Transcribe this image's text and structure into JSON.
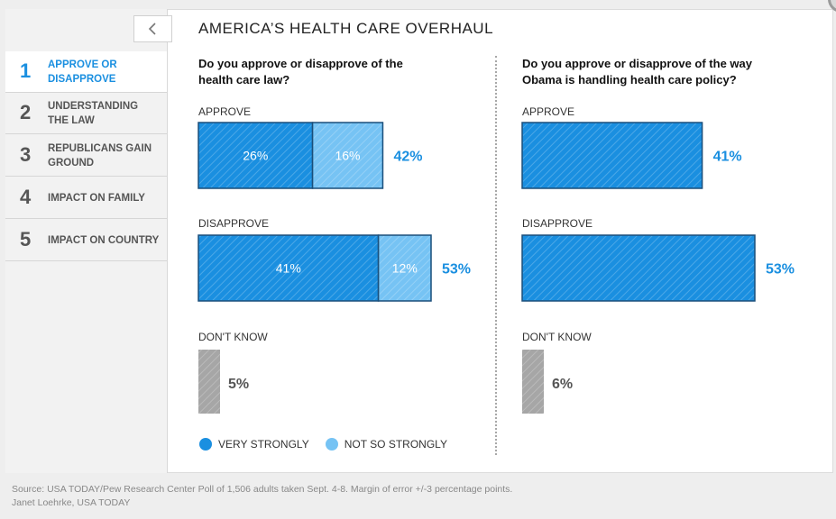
{
  "page": {
    "title": "AMERICA’S HEALTH CARE OVERHAUL"
  },
  "sidebar": {
    "items": [
      {
        "number": "1",
        "label": "APPROVE OR DISAPPROVE",
        "active": true
      },
      {
        "number": "2",
        "label": "UNDERSTANDING THE LAW",
        "active": false
      },
      {
        "number": "3",
        "label": "REPUBLICANS GAIN GROUND",
        "active": false
      },
      {
        "number": "4",
        "label": "IMPACT ON FAMILY",
        "active": false
      },
      {
        "number": "5",
        "label": "IMPACT ON COUNTRY",
        "active": false
      }
    ]
  },
  "icons": {
    "back": "chevron-left-icon",
    "corner": "dial-icon"
  },
  "colors": {
    "very_strongly": "#1a8fe0",
    "not_so_strongly": "#76c3f4",
    "dont_know": "#a6a6a6",
    "total_text": "#1a8fe0"
  },
  "legend": {
    "very_strongly": "VERY STRONGLY",
    "not_so_strongly": "NOT SO STRONGLY"
  },
  "footer": {
    "source": "Source: USA TODAY/Pew Research Center Poll of 1,506 adults taken Sept. 4-8. Margin of error +/-3 percentage points.",
    "credit": "Janet Loehrke, USA TODAY"
  },
  "chart_data": [
    {
      "type": "bar",
      "stacked": true,
      "title": "Do you approve or disapprove of the health care law?",
      "categories": [
        "APPROVE",
        "DISAPPROVE",
        "DON'T KNOW"
      ],
      "series": [
        {
          "name": "VERY STRONGLY",
          "values": [
            26,
            41,
            null
          ],
          "labels": [
            "26%",
            "41%",
            ""
          ]
        },
        {
          "name": "NOT SO STRONGLY",
          "values": [
            16,
            12,
            null
          ],
          "labels": [
            "16%",
            "12%",
            ""
          ]
        },
        {
          "name": "",
          "values": [
            null,
            null,
            5
          ],
          "labels": [
            "",
            "",
            ""
          ]
        }
      ],
      "totals": [
        "42%",
        "53%",
        "5%"
      ],
      "total_values": [
        42,
        53,
        5
      ]
    },
    {
      "type": "bar",
      "stacked": false,
      "title": "Do you approve or disapprove of the way Obama is handling health care policy?",
      "categories": [
        "APPROVE",
        "DISAPPROVE",
        "DON'T KNOW"
      ],
      "series": [
        {
          "name": "",
          "values": [
            41,
            53,
            6
          ]
        }
      ],
      "totals": [
        "41%",
        "53%",
        "6%"
      ],
      "total_values": [
        41,
        53,
        6
      ]
    }
  ]
}
